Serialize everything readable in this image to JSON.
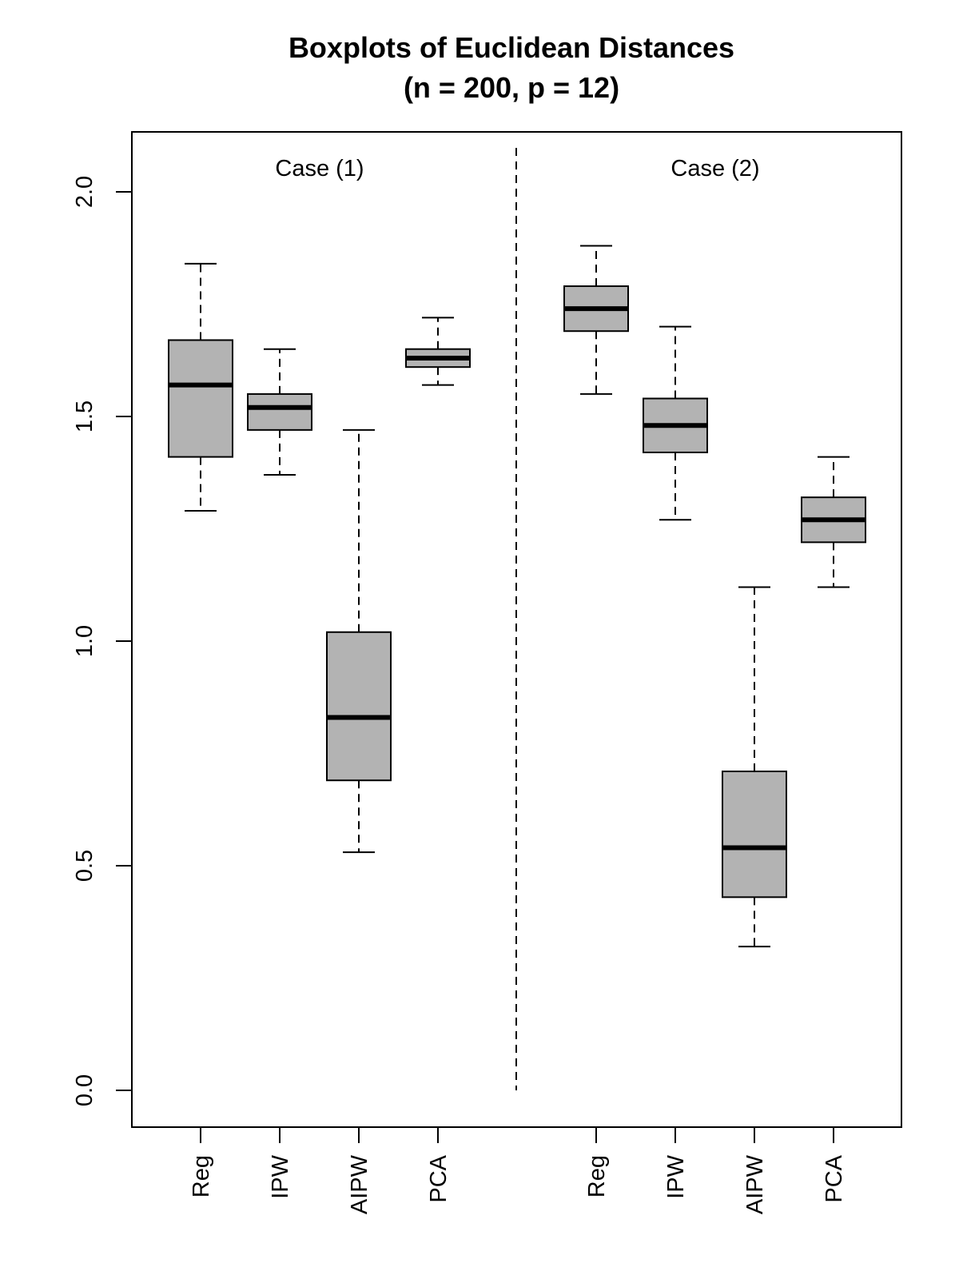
{
  "chart_data": {
    "type": "boxplot",
    "title": "Boxplots of Euclidean Distances",
    "subtitle": "(n = 200, p = 12)",
    "xlabel": "",
    "ylabel": "",
    "ylim": [
      0,
      2.1
    ],
    "yticks": [
      0.0,
      0.5,
      1.0,
      1.5,
      2.0
    ],
    "ytick_labels": [
      "0.0",
      "0.5",
      "1.0",
      "1.5",
      "2.0"
    ],
    "colors": {
      "box_fill": "#b3b3b3",
      "stroke": "#000000"
    },
    "groups": [
      {
        "name": "Case (1)",
        "boxes": [
          {
            "label": "Reg",
            "whisker_low": 1.29,
            "q1": 1.41,
            "median": 1.57,
            "q3": 1.67,
            "whisker_high": 1.84
          },
          {
            "label": "IPW",
            "whisker_low": 1.37,
            "q1": 1.47,
            "median": 1.52,
            "q3": 1.55,
            "whisker_high": 1.65
          },
          {
            "label": "AIPW",
            "whisker_low": 0.53,
            "q1": 0.69,
            "median": 0.83,
            "q3": 1.02,
            "whisker_high": 1.47
          },
          {
            "label": "PCA",
            "whisker_low": 1.57,
            "q1": 1.61,
            "median": 1.63,
            "q3": 1.65,
            "whisker_high": 1.72
          }
        ]
      },
      {
        "name": "Case (2)",
        "boxes": [
          {
            "label": "Reg",
            "whisker_low": 1.55,
            "q1": 1.69,
            "median": 1.74,
            "q3": 1.79,
            "whisker_high": 1.88
          },
          {
            "label": "IPW",
            "whisker_low": 1.27,
            "q1": 1.42,
            "median": 1.48,
            "q3": 1.54,
            "whisker_high": 1.7
          },
          {
            "label": "AIPW",
            "whisker_low": 0.32,
            "q1": 0.43,
            "median": 0.54,
            "q3": 0.71,
            "whisker_high": 1.12
          },
          {
            "label": "PCA",
            "whisker_low": 1.12,
            "q1": 1.22,
            "median": 1.27,
            "q3": 1.32,
            "whisker_high": 1.41
          }
        ]
      }
    ]
  }
}
